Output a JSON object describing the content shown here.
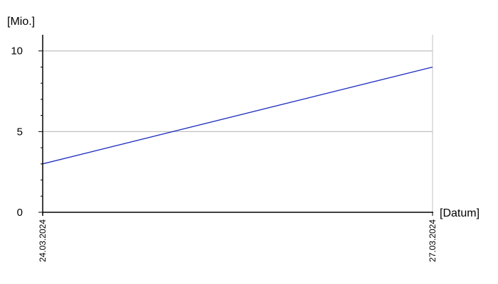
{
  "chart_data": {
    "type": "line",
    "ylabel": "[Mio.]",
    "xlabel": "[Datum]",
    "x": [
      "24.03.2024",
      "27.03.2024"
    ],
    "series": [
      {
        "values": [
          3,
          9
        ],
        "color": "#1f2fbf"
      }
    ],
    "ylim": [
      0,
      10
    ],
    "yticks": [
      0,
      5,
      10
    ],
    "yticks_labels": [
      "0",
      "5",
      "10"
    ],
    "xtick_labels": [
      "24.03.2024",
      "27.03.2024"
    ],
    "grid": true,
    "colors": {
      "grid": "#c0c0c0",
      "axis": "#000000"
    }
  }
}
